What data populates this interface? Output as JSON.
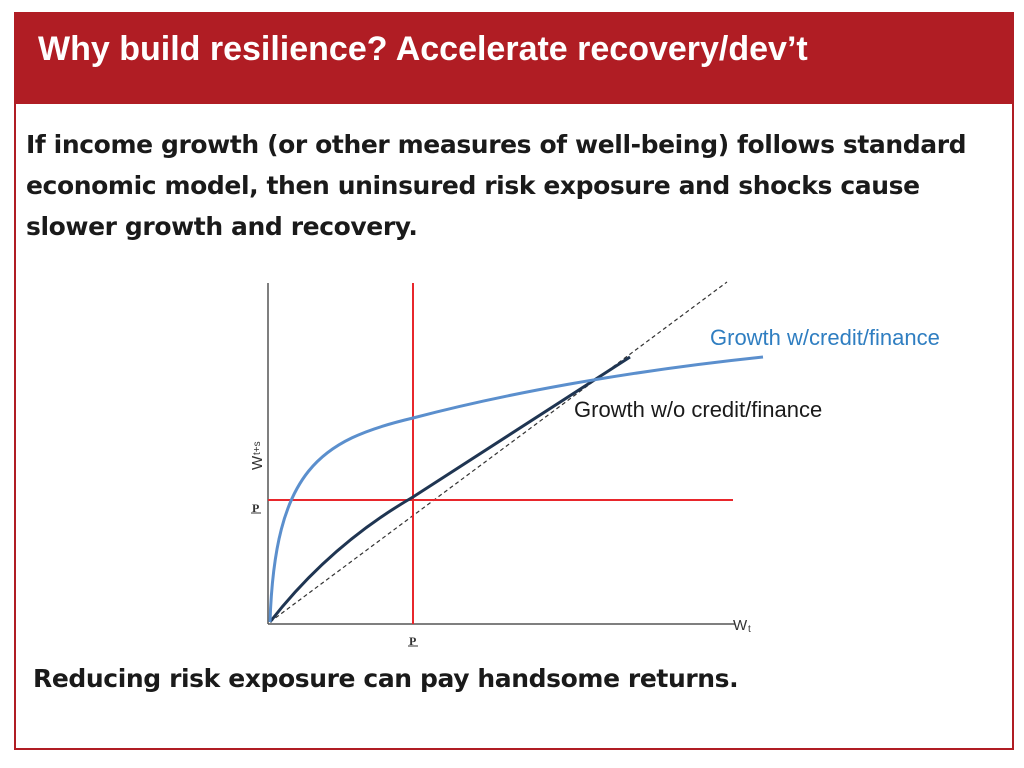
{
  "slide": {
    "title": "Why build resilience? Accelerate recovery/dev’t",
    "intro": "If income growth (or other measures of well-being) follows standard economic model, then uninsured risk exposure and shocks cause slower growth and recovery.",
    "conclusion": "Reducing risk exposure can pay handsome returns."
  },
  "diagram": {
    "y_axis_label": "W",
    "y_axis_subscript": "t+s",
    "x_axis_label": "W",
    "x_axis_subscript": "t",
    "threshold_y_label": "P",
    "threshold_x_label": "P",
    "curve_credit_label": "Growth w/credit/finance",
    "curve_nocredit_label": "Growth w/o credit/finance"
  },
  "colors": {
    "brand_red": "#b01d24",
    "threshold_red": "#e8272c",
    "curve_credit": "#5b8fcd",
    "curve_nocredit": "#1f3552",
    "label_credit": "#2f7ec1"
  }
}
